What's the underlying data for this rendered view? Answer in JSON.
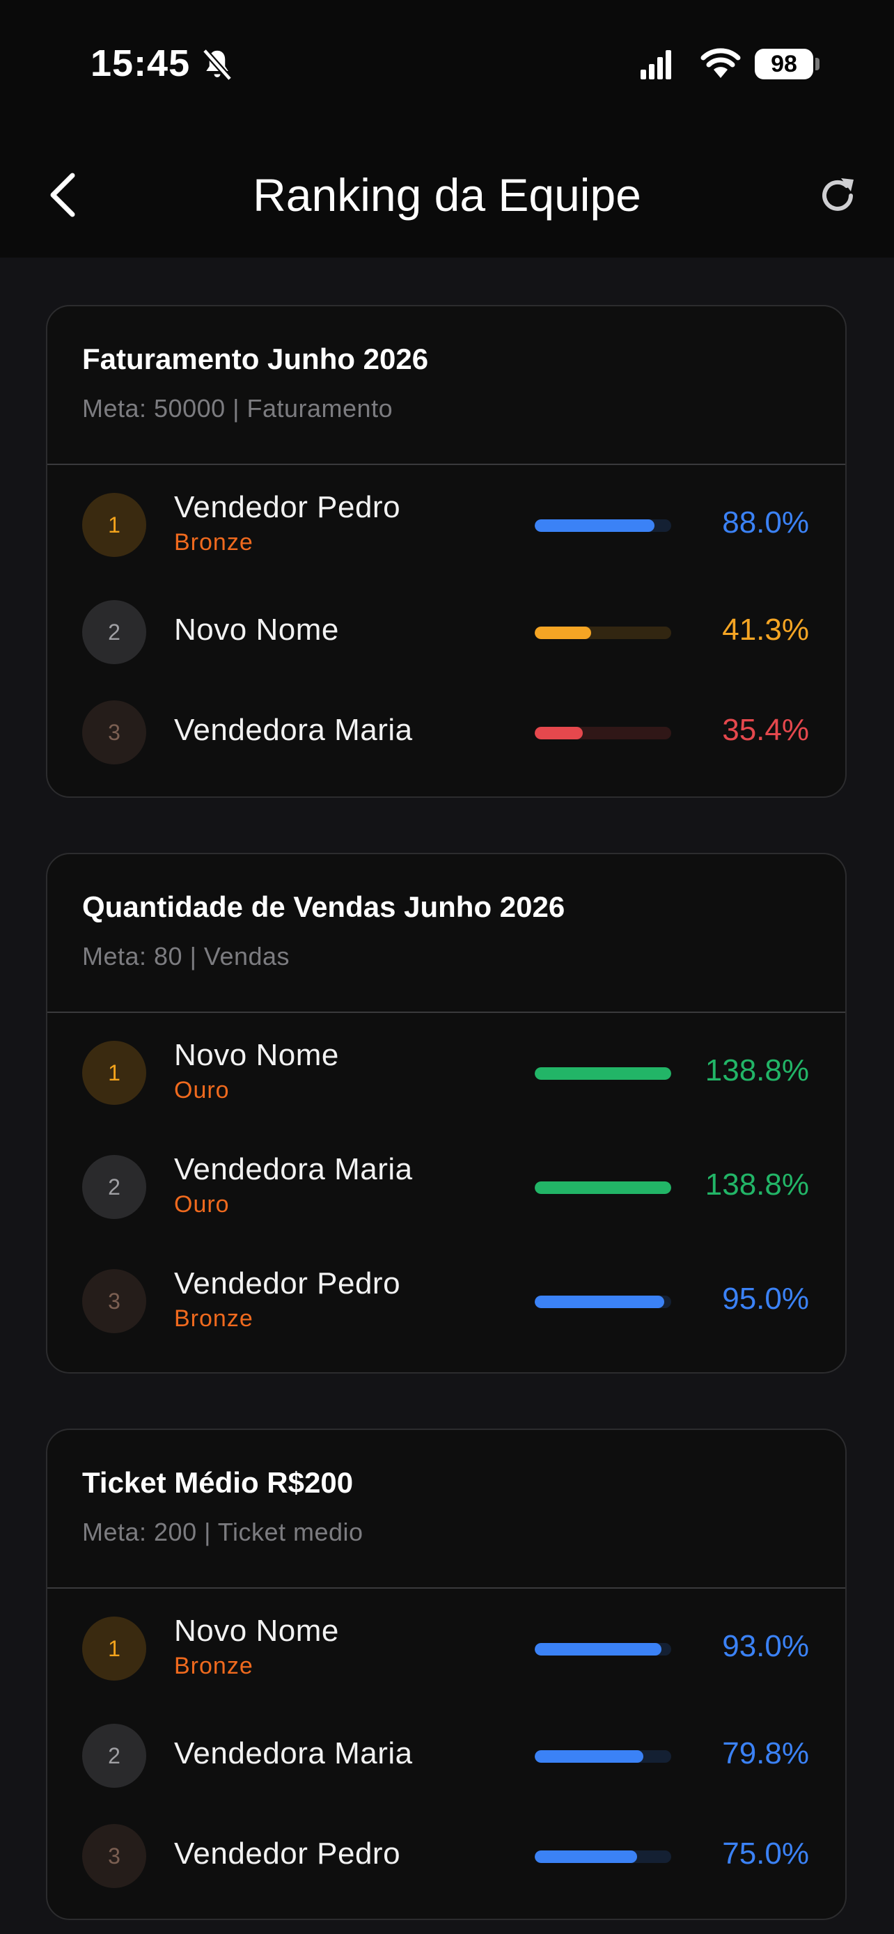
{
  "status_bar": {
    "time": "15:45",
    "battery": "98"
  },
  "header": {
    "title": "Ranking da Equipe"
  },
  "colors": {
    "blue": "#3b82f6",
    "orange": "#f5a524",
    "red": "#e5484d",
    "green": "#22b567",
    "tier": "#f06a1e"
  },
  "cards": [
    {
      "title": "Faturamento Junho 2026",
      "subtitle": "Meta: 50000 | Faturamento",
      "rows": [
        {
          "rank": "1",
          "name": "Vendedor Pedro",
          "tier": "Bronze",
          "percent": "88.0%",
          "progress": 0.88,
          "color": "blue"
        },
        {
          "rank": "2",
          "name": "Novo Nome",
          "tier": "",
          "percent": "41.3%",
          "progress": 0.413,
          "color": "orange"
        },
        {
          "rank": "3",
          "name": "Vendedora Maria",
          "tier": "",
          "percent": "35.4%",
          "progress": 0.354,
          "color": "red"
        }
      ]
    },
    {
      "title": "Quantidade de Vendas Junho 2026",
      "subtitle": "Meta: 80 | Vendas",
      "rows": [
        {
          "rank": "1",
          "name": "Novo Nome",
          "tier": "Ouro",
          "percent": "138.8%",
          "progress": 1.0,
          "color": "green"
        },
        {
          "rank": "2",
          "name": "Vendedora Maria",
          "tier": "Ouro",
          "percent": "138.8%",
          "progress": 1.0,
          "color": "green"
        },
        {
          "rank": "3",
          "name": "Vendedor Pedro",
          "tier": "Bronze",
          "percent": "95.0%",
          "progress": 0.95,
          "color": "blue"
        }
      ]
    },
    {
      "title": "Ticket Médio R$200",
      "subtitle": "Meta: 200 | Ticket medio",
      "rows": [
        {
          "rank": "1",
          "name": "Novo Nome",
          "tier": "Bronze",
          "percent": "93.0%",
          "progress": 0.93,
          "color": "blue"
        },
        {
          "rank": "2",
          "name": "Vendedora Maria",
          "tier": "",
          "percent": "79.8%",
          "progress": 0.798,
          "color": "blue"
        },
        {
          "rank": "3",
          "name": "Vendedor Pedro",
          "tier": "",
          "percent": "75.0%",
          "progress": 0.75,
          "color": "blue"
        }
      ]
    }
  ]
}
